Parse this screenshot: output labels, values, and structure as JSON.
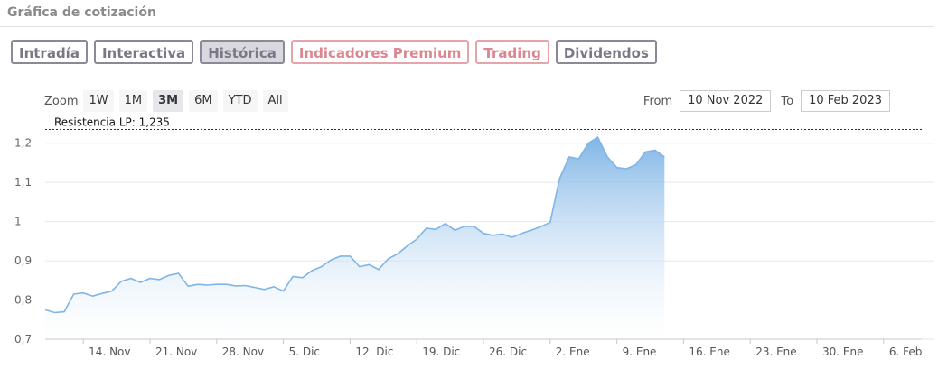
{
  "header": {
    "title": "Gráfica de cotización"
  },
  "tabs": [
    {
      "label": "Intradía",
      "active": false,
      "premium": false
    },
    {
      "label": "Interactiva",
      "active": false,
      "premium": false
    },
    {
      "label": "Histórica",
      "active": true,
      "premium": false
    },
    {
      "label": "Indicadores Premium",
      "active": false,
      "premium": true
    },
    {
      "label": "Trading",
      "active": false,
      "premium": true
    },
    {
      "label": "Dividendos",
      "active": false,
      "premium": false
    }
  ],
  "zoom": {
    "label": "Zoom",
    "options": [
      "1W",
      "1M",
      "3M",
      "6M",
      "YTD",
      "All"
    ],
    "selected": "3M"
  },
  "range": {
    "from_label": "From",
    "from_value": "10 Nov 2022",
    "to_label": "To",
    "to_value": "10 Feb 2023"
  },
  "colors": {
    "line": "#7fb5e6",
    "area_top": "#7fb5e6",
    "area_bottom": "#ffffff",
    "grid": "#e6e6e6",
    "resistance": "#333333"
  },
  "chart_data": {
    "type": "area",
    "grid": true,
    "ylim": [
      0.7,
      1.25
    ],
    "y_ticks": [
      0.7,
      0.8,
      0.9,
      1.0,
      1.1,
      1.2
    ],
    "y_tick_labels": [
      "0,7",
      "0,8",
      "0,9",
      "1",
      "1,1",
      "1,2"
    ],
    "x_ticks": [
      {
        "date": "2022-11-14",
        "label": "14. Nov"
      },
      {
        "date": "2022-11-21",
        "label": "21. Nov"
      },
      {
        "date": "2022-11-28",
        "label": "28. Nov"
      },
      {
        "date": "2022-12-05",
        "label": "5. Dic"
      },
      {
        "date": "2022-12-12",
        "label": "12. Dic"
      },
      {
        "date": "2022-12-19",
        "label": "19. Dic"
      },
      {
        "date": "2022-12-26",
        "label": "26. Dic"
      },
      {
        "date": "2023-01-02",
        "label": "2. Ene"
      },
      {
        "date": "2023-01-09",
        "label": "9. Ene"
      },
      {
        "date": "2023-01-16",
        "label": "16. Ene"
      },
      {
        "date": "2023-01-23",
        "label": "23. Ene"
      },
      {
        "date": "2023-01-30",
        "label": "30. Ene"
      },
      {
        "date": "2023-02-06",
        "label": "6. Feb"
      }
    ],
    "x_range": [
      "2022-11-10",
      "2023-02-10"
    ],
    "resistance": {
      "label": "Resistencia LP: 1,235",
      "value": 1.235
    },
    "points": [
      [
        "2022-11-10",
        0.775
      ],
      [
        "2022-11-11",
        0.768
      ],
      [
        "2022-11-12",
        0.77
      ],
      [
        "2022-11-13",
        0.815
      ],
      [
        "2022-11-14",
        0.818
      ],
      [
        "2022-11-15",
        0.81
      ],
      [
        "2022-11-16",
        0.817
      ],
      [
        "2022-11-17",
        0.823
      ],
      [
        "2022-11-18",
        0.848
      ],
      [
        "2022-11-19",
        0.855
      ],
      [
        "2022-11-20",
        0.845
      ],
      [
        "2022-11-21",
        0.855
      ],
      [
        "2022-11-22",
        0.852
      ],
      [
        "2022-11-23",
        0.863
      ],
      [
        "2022-11-24",
        0.868
      ],
      [
        "2022-11-25",
        0.835
      ],
      [
        "2022-11-26",
        0.84
      ],
      [
        "2022-11-27",
        0.838
      ],
      [
        "2022-11-28",
        0.84
      ],
      [
        "2022-11-29",
        0.84
      ],
      [
        "2022-11-30",
        0.836
      ],
      [
        "2022-12-01",
        0.837
      ],
      [
        "2022-12-02",
        0.832
      ],
      [
        "2022-12-03",
        0.827
      ],
      [
        "2022-12-04",
        0.834
      ],
      [
        "2022-12-05",
        0.823
      ],
      [
        "2022-12-06",
        0.86
      ],
      [
        "2022-12-07",
        0.857
      ],
      [
        "2022-12-08",
        0.875
      ],
      [
        "2022-12-09",
        0.885
      ],
      [
        "2022-12-10",
        0.902
      ],
      [
        "2022-12-11",
        0.912
      ],
      [
        "2022-12-12",
        0.912
      ],
      [
        "2022-12-13",
        0.885
      ],
      [
        "2022-12-14",
        0.89
      ],
      [
        "2022-12-15",
        0.878
      ],
      [
        "2022-12-16",
        0.905
      ],
      [
        "2022-12-17",
        0.918
      ],
      [
        "2022-12-18",
        0.938
      ],
      [
        "2022-12-19",
        0.955
      ],
      [
        "2022-12-20",
        0.983
      ],
      [
        "2022-12-21",
        0.98
      ],
      [
        "2022-12-22",
        0.995
      ],
      [
        "2022-12-23",
        0.978
      ],
      [
        "2022-12-24",
        0.988
      ],
      [
        "2022-12-25",
        0.988
      ],
      [
        "2022-12-26",
        0.97
      ],
      [
        "2022-12-27",
        0.965
      ],
      [
        "2022-12-28",
        0.968
      ],
      [
        "2022-12-29",
        0.96
      ],
      [
        "2022-12-30",
        0.97
      ],
      [
        "2022-12-31",
        0.978
      ],
      [
        "2023-01-01",
        0.987
      ],
      [
        "2023-01-02",
        0.998
      ],
      [
        "2023-01-03",
        1.11
      ],
      [
        "2023-01-04",
        1.165
      ],
      [
        "2023-01-05",
        1.16
      ],
      [
        "2023-01-06",
        1.2
      ],
      [
        "2023-01-07",
        1.215
      ],
      [
        "2023-01-08",
        1.165
      ],
      [
        "2023-01-09",
        1.138
      ],
      [
        "2023-01-10",
        1.135
      ],
      [
        "2023-01-11",
        1.145
      ],
      [
        "2023-01-12",
        1.178
      ],
      [
        "2023-01-13",
        1.182
      ],
      [
        "2023-01-14",
        1.165
      ]
    ]
  }
}
